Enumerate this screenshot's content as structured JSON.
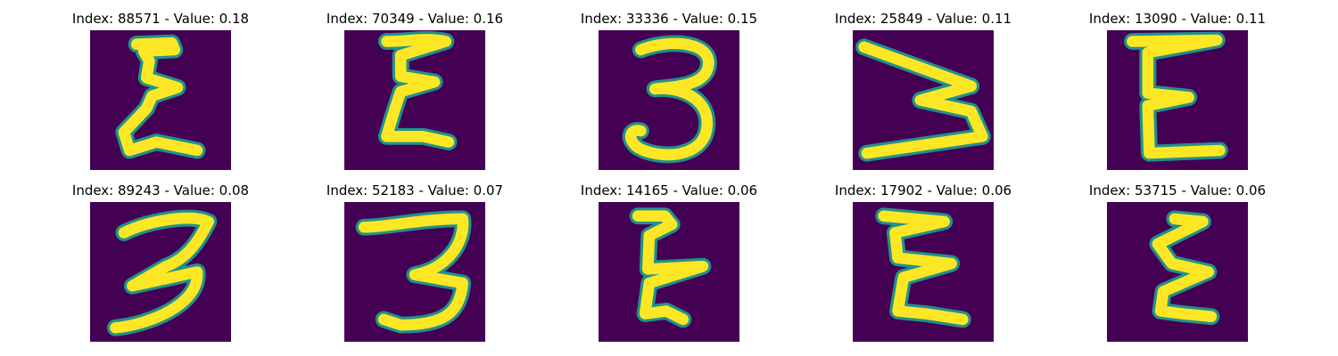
{
  "colors": {
    "background": "#440154",
    "stroke": "#fde725",
    "edge": "#21918c"
  },
  "panels": [
    {
      "title": "Index: 88571 - Value: 0.18",
      "glyph": "E",
      "variant": 0
    },
    {
      "title": "Index: 70349 - Value: 0.16",
      "glyph": "E",
      "variant": 1
    },
    {
      "title": "Index: 33336 - Value: 0.15",
      "glyph": "3",
      "variant": 0
    },
    {
      "title": "Index: 25849 - Value: 0.11",
      "glyph": "W",
      "variant": 0
    },
    {
      "title": "Index: 13090 - Value: 0.11",
      "glyph": "E",
      "variant": 2
    },
    {
      "title": "Index: 89243 - Value: 0.08",
      "glyph": "3",
      "variant": 1
    },
    {
      "title": "Index: 52183 - Value: 0.07",
      "glyph": "3",
      "variant": 2
    },
    {
      "title": "Index: 14165 - Value: 0.06",
      "glyph": "E",
      "variant": 3
    },
    {
      "title": "Index: 17902 - Value: 0.06",
      "glyph": "E",
      "variant": 4
    },
    {
      "title": "Index: 53715 - Value: 0.06",
      "glyph": "E",
      "variant": 5
    }
  ]
}
